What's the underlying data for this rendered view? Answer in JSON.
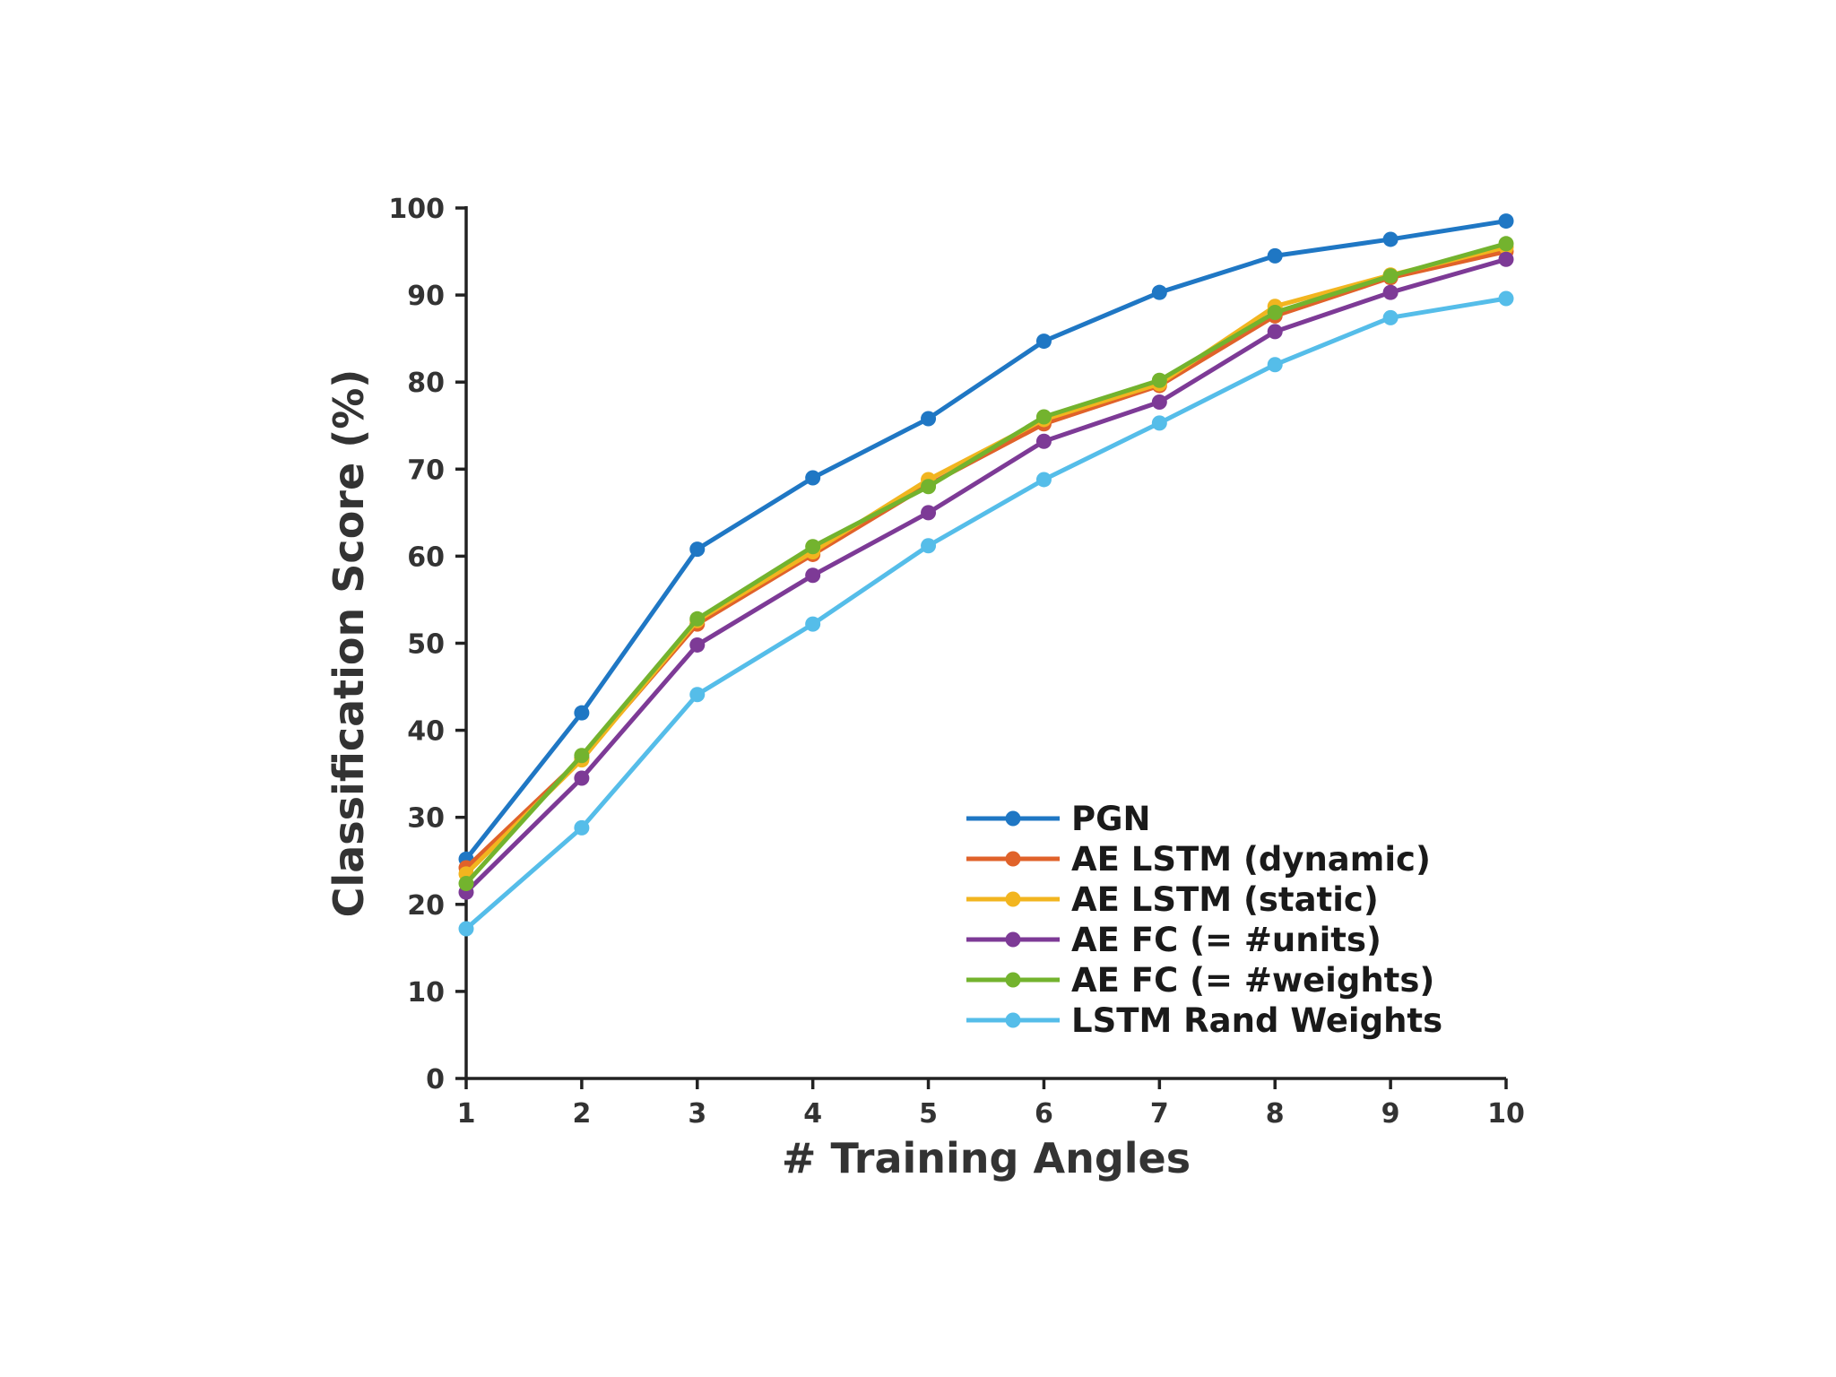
{
  "chart_data": {
    "type": "line",
    "xlabel": "# Training Angles",
    "ylabel": "Classification Score (%)",
    "x": [
      1,
      2,
      3,
      4,
      5,
      6,
      7,
      8,
      9,
      10
    ],
    "xlim": [
      1,
      10
    ],
    "ylim": [
      0,
      100
    ],
    "yticks": [
      0,
      10,
      20,
      30,
      40,
      50,
      60,
      70,
      80,
      90,
      100
    ],
    "grid": false,
    "legend_position": "bottom-right",
    "series": [
      {
        "name": "PGN",
        "color": "#1f77c4",
        "values": [
          25.2,
          42,
          60.8,
          69,
          75.8,
          84.7,
          90.3,
          94.5,
          96.4,
          98.5
        ]
      },
      {
        "name": "AE LSTM (dynamic)",
        "color": "#e0622a",
        "values": [
          24.2,
          36.8,
          52.2,
          60.2,
          68.2,
          75.2,
          79.6,
          87.6,
          92,
          95
        ]
      },
      {
        "name": "AE LSTM (static)",
        "color": "#f2b51f",
        "values": [
          23.5,
          36.6,
          52.6,
          60.5,
          68.8,
          75.7,
          79.8,
          88.7,
          92.3,
          95.5
        ]
      },
      {
        "name": "AE FC (= #units)",
        "color": "#7d3a96",
        "values": [
          21.4,
          34.5,
          49.8,
          57.8,
          65,
          73.2,
          77.7,
          85.8,
          90.3,
          94.1
        ]
      },
      {
        "name": "AE FC (= #weights)",
        "color": "#73b32e",
        "values": [
          22.4,
          37.1,
          52.8,
          61.1,
          68,
          76,
          80.2,
          88,
          92.2,
          95.9
        ]
      },
      {
        "name": "LSTM Rand Weights",
        "color": "#55bde9",
        "values": [
          17.2,
          28.8,
          44.1,
          52.2,
          61.2,
          68.8,
          75.3,
          82,
          87.4,
          89.6
        ]
      }
    ]
  }
}
